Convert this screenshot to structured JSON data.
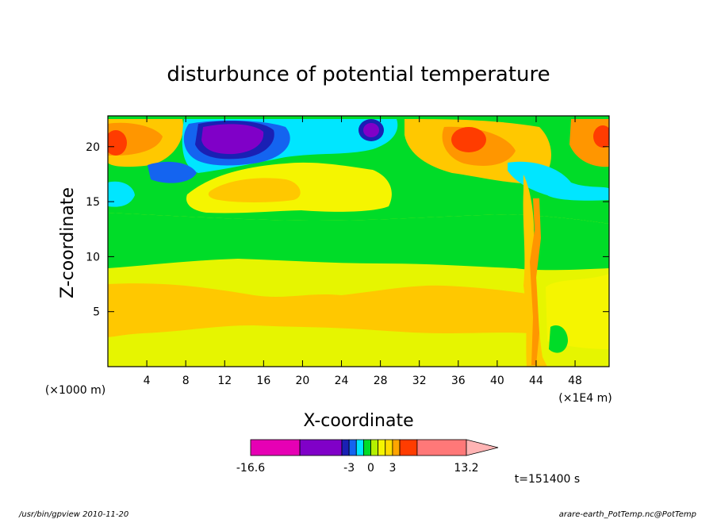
{
  "chart_data": {
    "type": "heatmap",
    "title": "disturbunce of potential temperature",
    "xlabel": "X-coordinate",
    "ylabel": "Z-coordinate",
    "x_unit_left": "(×1000 m)",
    "x_unit_right": "(×1E4 m)",
    "x_ticks": [
      "4",
      "8",
      "12",
      "16",
      "20",
      "24",
      "28",
      "32",
      "36",
      "40",
      "44",
      "48"
    ],
    "y_ticks": [
      "5",
      "10",
      "15",
      "20"
    ],
    "xlim": [
      0,
      51.5
    ],
    "ylim": [
      0,
      22.8
    ],
    "colorbar": {
      "labels": [
        "-16.6",
        "-3",
        "0",
        "3",
        "13.2"
      ],
      "levels": [
        -16.6,
        -9.8,
        -4,
        -3,
        -2,
        -1,
        0,
        1,
        2,
        3,
        4,
        6.4,
        13.2
      ],
      "colors": [
        "#e600b4",
        "#8000c8",
        "#1a20b4",
        "#1464f0",
        "#00e6ff",
        "#00dc28",
        "#b4f000",
        "#f5f500",
        "#ffdc00",
        "#ffa500",
        "#ff3c00",
        "#ff7878"
      ],
      "extend_color": "#ffb4b4"
    },
    "time_label": "t=151400 s"
  },
  "footer": {
    "left": "/usr/bin/gpview  2010-11-20",
    "right": "arare-earth_PotTemp.nc@PotTemp"
  },
  "colors": {
    "yellow_lime": "#e6f500",
    "yellow": "#f5f500",
    "orange_light": "#ffc800",
    "orange": "#ff9600",
    "red": "#ff3c00",
    "green": "#00dc28",
    "cyan": "#00e6ff",
    "blue": "#1464f0",
    "navy": "#1a20b4",
    "purple": "#8000c8"
  }
}
